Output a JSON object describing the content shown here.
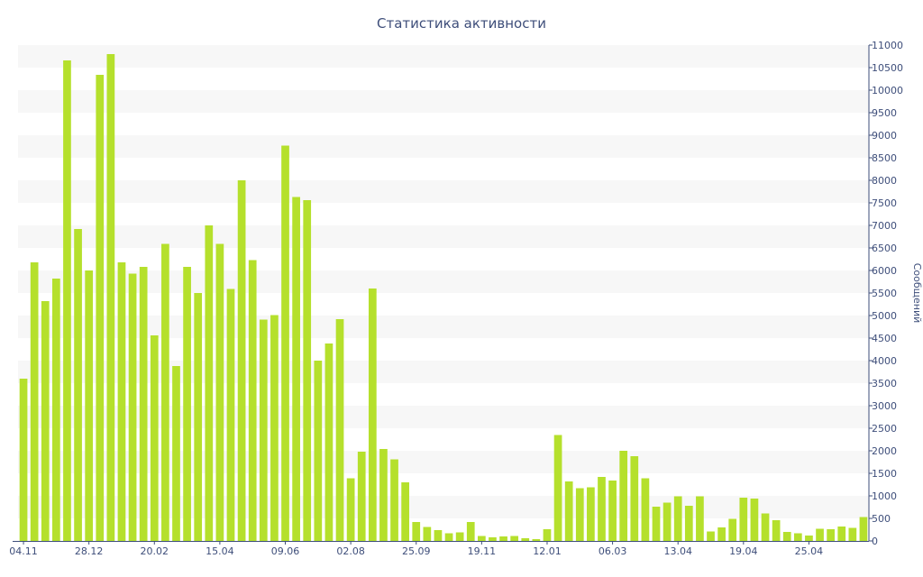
{
  "chart_data": {
    "type": "bar",
    "title": "Статистика активности",
    "ylabel": "Сообщений",
    "ylim": [
      0,
      11000
    ],
    "y_ticks": [
      0,
      500,
      1000,
      1500,
      2000,
      2500,
      3000,
      3500,
      4000,
      4500,
      5000,
      5500,
      6000,
      6500,
      7000,
      7500,
      8000,
      8500,
      9000,
      9500,
      10000,
      10500,
      11000
    ],
    "y_axis_position": "right",
    "x_tick_labels": [
      {
        "label": "04.11",
        "index": 0
      },
      {
        "label": "28.12",
        "index": 6
      },
      {
        "label": "20.02",
        "index": 12
      },
      {
        "label": "15.04",
        "index": 18
      },
      {
        "label": "09.06",
        "index": 24
      },
      {
        "label": "02.08",
        "index": 30
      },
      {
        "label": "25.09",
        "index": 36
      },
      {
        "label": "19.11",
        "index": 42
      },
      {
        "label": "12.01",
        "index": 48
      },
      {
        "label": "06.03",
        "index": 54
      },
      {
        "label": "13.04",
        "index": 60
      },
      {
        "label": "19.04",
        "index": 66
      },
      {
        "label": "25.04",
        "index": 72
      }
    ],
    "values": [
      3600,
      6180,
      5320,
      5820,
      10660,
      6920,
      6000,
      10340,
      10800,
      6180,
      5930,
      6080,
      4560,
      6590,
      3880,
      6080,
      5500,
      7000,
      6590,
      5590,
      8000,
      6230,
      4910,
      5010,
      8770,
      7630,
      7560,
      4000,
      4380,
      4920,
      1390,
      1980,
      5600,
      2040,
      1810,
      1300,
      420,
      310,
      240,
      170,
      190,
      420,
      110,
      80,
      100,
      110,
      60,
      40,
      260,
      2350,
      1320,
      1170,
      1190,
      1420,
      1340,
      2000,
      1880,
      1390,
      760,
      850,
      990,
      780,
      990,
      210,
      300,
      490,
      960,
      940,
      610,
      460,
      200,
      170,
      120,
      270,
      260,
      320,
      290,
      530
    ],
    "bar_color": "#b5e02c",
    "grid": "horizontal-bands",
    "legend": "none"
  }
}
